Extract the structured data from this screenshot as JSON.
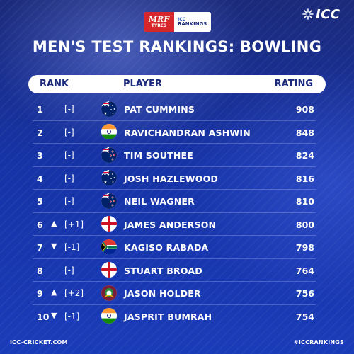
{
  "sponsor": {
    "mrf_line1": "MRF",
    "mrf_line2": "TYRES",
    "icc_line1": "ICC",
    "icc_line2": "RANKINGS"
  },
  "brand": {
    "logo_text": "ICC"
  },
  "title": "MEN'S TEST RANKINGS: BOWLING",
  "header": {
    "rank": "RANK",
    "player": "PLAYER",
    "rating": "RATING"
  },
  "rows": [
    {
      "rank": "1",
      "arrow": "",
      "change": "[-]",
      "player": "PAT CUMMINS",
      "rating": "908",
      "flag": "australia-flag"
    },
    {
      "rank": "2",
      "arrow": "",
      "change": "[-]",
      "player": "RAVICHANDRAN ASHWIN",
      "rating": "848",
      "flag": "india-flag"
    },
    {
      "rank": "3",
      "arrow": "",
      "change": "[-]",
      "player": "TIM SOUTHEE",
      "rating": "824",
      "flag": "new-zealand-flag"
    },
    {
      "rank": "4",
      "arrow": "",
      "change": "[-]",
      "player": "JOSH HAZLEWOOD",
      "rating": "816",
      "flag": "australia-flag"
    },
    {
      "rank": "5",
      "arrow": "",
      "change": "[-]",
      "player": "NEIL WAGNER",
      "rating": "810",
      "flag": "new-zealand-flag"
    },
    {
      "rank": "6",
      "arrow": "▲",
      "change": "[+1]",
      "player": "JAMES ANDERSON",
      "rating": "800",
      "flag": "england-flag"
    },
    {
      "rank": "7",
      "arrow": "▼",
      "change": "[-1]",
      "player": "KAGISO RABADA",
      "rating": "798",
      "flag": "south-africa-flag"
    },
    {
      "rank": "8",
      "arrow": "",
      "change": "[-]",
      "player": "STUART BROAD",
      "rating": "764",
      "flag": "england-flag"
    },
    {
      "rank": "9",
      "arrow": "▲",
      "change": "[+2]",
      "player": "JASON HOLDER",
      "rating": "756",
      "flag": "west-indies-flag"
    },
    {
      "rank": "10",
      "arrow": "▼",
      "change": "[-1]",
      "player": "JASPRIT BUMRAH",
      "rating": "754",
      "flag": "india-flag"
    }
  ],
  "footer": {
    "website": "ICC-CRICKET.COM",
    "hashtag": "#ICCRANKINGS"
  },
  "colors": {
    "background": "#1633a6",
    "header_bg": "#ffffff",
    "header_text": "#1b2a7a",
    "mrf_red": "#d6262b"
  }
}
